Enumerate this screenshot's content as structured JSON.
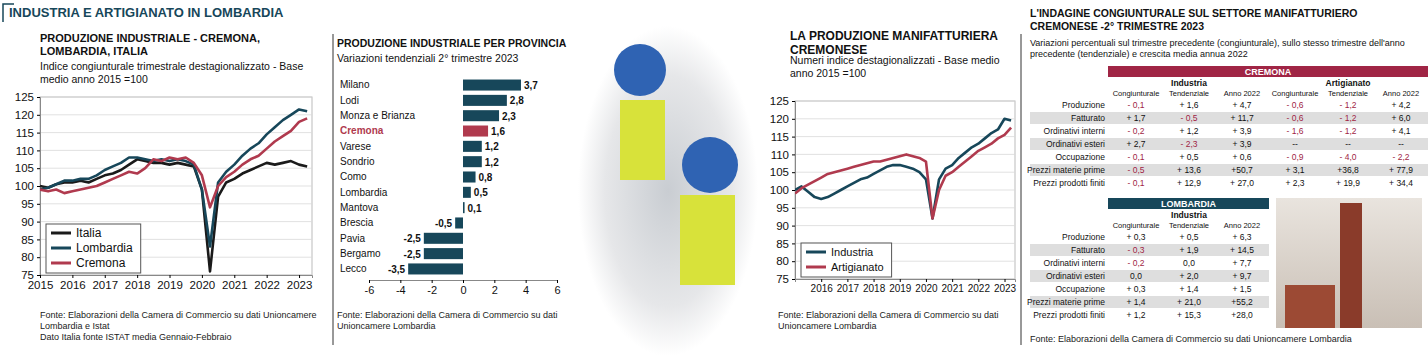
{
  "header": {
    "title": "INDUSTRIA E ARTIGIANATO IN LOMBARDIA"
  },
  "chart_data": [
    {
      "type": "line",
      "title": "PRODUZIONE INDUSTRIALE - CREMONA, LOMBARDIA, ITALIA",
      "subtitle": "Indice congiunturale trimestrale destagionalizzato - Base medio anno 2015 =100",
      "x": [
        2015,
        2015.25,
        2015.5,
        2015.75,
        2016,
        2016.25,
        2016.5,
        2016.75,
        2017,
        2017.25,
        2017.5,
        2017.75,
        2018,
        2018.25,
        2018.5,
        2018.75,
        2019,
        2019.25,
        2019.5,
        2019.75,
        2020,
        2020.25,
        2020.5,
        2020.75,
        2021,
        2021.25,
        2021.5,
        2021.75,
        2022,
        2022.25,
        2022.5,
        2022.75,
        2023,
        2023.25
      ],
      "xlim": [
        2015,
        2023.4
      ],
      "xticks": [
        2015,
        2016,
        2017,
        2018,
        2019,
        2020,
        2021,
        2022,
        2023
      ],
      "ylim": [
        75,
        125
      ],
      "yticks": [
        75,
        80,
        85,
        90,
        95,
        100,
        105,
        110,
        115,
        120,
        125
      ],
      "grid": true,
      "legend": "lower left",
      "series": [
        {
          "name": "Italia",
          "color": "#1a1a1a",
          "values": [
            100,
            99.5,
            100.5,
            101,
            101,
            101.5,
            101,
            102,
            103,
            103.5,
            104.5,
            106,
            107.5,
            107,
            106.5,
            106.5,
            106,
            106.5,
            106,
            105.5,
            99,
            76,
            97,
            101,
            102,
            103.5,
            104.5,
            105.5,
            106.5,
            106,
            106.5,
            107,
            106,
            105.5
          ]
        },
        {
          "name": "Lombardia",
          "color": "#17475a",
          "values": [
            99,
            99.5,
            100.5,
            101.5,
            101.5,
            102,
            102,
            103,
            104.5,
            105.5,
            106.5,
            108,
            108,
            107.5,
            107,
            107.5,
            107,
            107.5,
            107,
            106,
            99,
            83,
            101,
            104,
            106,
            108.5,
            110.5,
            112,
            114.5,
            116.5,
            118.5,
            120,
            121.5,
            121
          ]
        },
        {
          "name": "Cremona",
          "color": "#b03a4e",
          "values": [
            99,
            98.5,
            99,
            98,
            98.5,
            99,
            99.5,
            100,
            101,
            102,
            103,
            104,
            103.5,
            105,
            107.5,
            107,
            108,
            107.5,
            108,
            106.5,
            103,
            94,
            100,
            102.5,
            104,
            106,
            107.5,
            108.5,
            110.5,
            112.5,
            114,
            115.5,
            118,
            119
          ]
        }
      ],
      "annotations": [
        "Fonte: Elaborazioni della Camera di Commercio  su dati Unioncamere Lombardia e Istat",
        "Dato Italia fonte ISTAT media Gennaio-Febbraio"
      ]
    },
    {
      "type": "bar",
      "orientation": "horizontal",
      "title": "PRODUZIONE INDUSTRIALE PER PROVINCIA",
      "subtitle": "Variazioni tendenziali 2° trimestre 2023",
      "categories": [
        "Milano",
        "Lodi",
        "Monza e Brianza",
        "Cremona",
        "Varese",
        "Sondrio",
        "Como",
        "Lombardia",
        "Mantova",
        "Brescia",
        "Pavia",
        "Bergamo",
        "Lecco"
      ],
      "values": [
        3.7,
        2.8,
        2.3,
        1.6,
        1.2,
        1.2,
        0.8,
        0.5,
        0.1,
        -0.5,
        -2.5,
        -2.5,
        -3.5
      ],
      "value_labels": [
        "3,7",
        "2,8",
        "2,3",
        "1,6",
        "1,2",
        "1,2",
        "0,8",
        "0,5",
        "0,1",
        "-0,5",
        "-2,5",
        "-2,5",
        "-3,5"
      ],
      "colors": [
        "#17475a",
        "#17475a",
        "#17475a",
        "#b03a4e",
        "#17475a",
        "#17475a",
        "#17475a",
        "#17475a",
        "#17475a",
        "#17475a",
        "#17475a",
        "#17475a",
        "#17475a"
      ],
      "data_labels": true,
      "grid": false,
      "xlim": [
        -6,
        6
      ],
      "xticks": [
        -6,
        -4,
        -2,
        0,
        2,
        4,
        6
      ],
      "annotations": [
        "Fonte: Elaborazioni della Camera di Commercio  su dati Unioncamere Lombardia"
      ]
    },
    {
      "type": "line",
      "title": "LA PRODUZIONE MANIFATTURIERA CREMONESE",
      "subtitle": "Numeri indice destagionalizzati - Base medio anno 2015 =100",
      "x": [
        2015,
        2015.25,
        2015.5,
        2015.75,
        2016,
        2016.25,
        2016.5,
        2016.75,
        2017,
        2017.25,
        2017.5,
        2017.75,
        2018,
        2018.25,
        2018.5,
        2018.75,
        2019,
        2019.25,
        2019.5,
        2019.75,
        2020,
        2020.25,
        2020.5,
        2020.75,
        2021,
        2021.25,
        2021.5,
        2021.75,
        2022,
        2022.25,
        2022.5,
        2022.75,
        2023,
        2023.25
      ],
      "xlim": [
        2015,
        2023.4
      ],
      "xticks": [
        2016,
        2017,
        2018,
        2019,
        2020,
        2021,
        2022,
        2023
      ],
      "ylim": [
        75,
        125
      ],
      "yticks": [
        75,
        80,
        85,
        90,
        95,
        100,
        105,
        110,
        115,
        120,
        125
      ],
      "grid": true,
      "legend": "lower left",
      "series": [
        {
          "name": "Industria",
          "color": "#17475a",
          "values": [
            100,
            101,
            99.5,
            98,
            97.5,
            98,
            99,
            100,
            101,
            102,
            103,
            103.5,
            104.5,
            105.5,
            106.5,
            107,
            107,
            106.5,
            106,
            105,
            103,
            92,
            103,
            106,
            107,
            109,
            110.5,
            112,
            113,
            114.5,
            116,
            117,
            120,
            119.5
          ]
        },
        {
          "name": "Artigianato",
          "color": "#b03a4e",
          "values": [
            99,
            100.5,
            101.5,
            102.5,
            103.5,
            104.5,
            105,
            105.5,
            106,
            106.5,
            107,
            107.5,
            108,
            108,
            108.5,
            109,
            109.5,
            110,
            109.5,
            109,
            108,
            92,
            100,
            104,
            105,
            106.5,
            108,
            109.5,
            111,
            112,
            113,
            114.5,
            115.5,
            117.5
          ]
        }
      ],
      "annotations": [
        "Fonte: Elaborazioni della Camera di Commercio  su dati Unioncamere Lombardia"
      ]
    }
  ],
  "tables": {
    "title": "L'INDAGINE CONGIUNTURALE SUL SETTORE MANIFATTURIERO CREMONESE -2° TRIMESTRE 2023",
    "subtitle": "Variazioni percentuali sul trimestre precedente (congiunturale), sullo stesso trimestre dell'anno precedente (tendenziale) e crescita media annua 2022",
    "source": "Fonte: Elaborazioni della Camera di Commercio  su dati Unioncamere Lombardia",
    "blocks": [
      {
        "header": "CREMONA",
        "color": "#a02545",
        "groups": [
          "Industria",
          "Artigianato"
        ],
        "columns": [
          "Congiunturale",
          "Tendenziale",
          "Anno 2022",
          "Congiunturale",
          "Tendenziale",
          "Anno 2022"
        ],
        "rows": [
          [
            "Produzione",
            "- 0,1",
            "+ 1,6",
            "+ 4,7",
            "- 0,6",
            "- 1,2",
            "+ 4,2"
          ],
          [
            "Fatturato",
            "+ 1,7",
            "- 0,5",
            "+ 11,7",
            "- 0,6",
            "- 1,2",
            "+ 6,0"
          ],
          [
            "Ordinativi interni",
            "- 0,2",
            "+ 1,2",
            "+ 3,9",
            "- 1,6",
            "- 1,2",
            "+ 4,1"
          ],
          [
            "Ordinativi esteri",
            "+ 2,7",
            "- 2,3",
            "+ 3,9",
            "--",
            "--",
            "--"
          ],
          [
            "Occupazione",
            "- 0,1",
            "+ 0,5",
            "+ 0,6",
            "- 0,9",
            "- 4,0",
            "- 2,2"
          ],
          [
            "Prezzi materie prime",
            "- 0,5",
            "+ 13,6",
            "+50,7",
            "+ 3,1",
            "+36,8",
            "+ 77,9"
          ],
          [
            "Prezzi prodotti finiti",
            "- 0,1",
            "+ 12,9",
            "+ 27,0",
            "+ 2,3",
            "+ 19,9",
            "+ 34,4"
          ]
        ]
      },
      {
        "header": "LOMBARDIA",
        "color": "#17475a",
        "groups": [
          "Industria"
        ],
        "columns": [
          "Congiunturale",
          "Tendenziale",
          "Anno 2022"
        ],
        "rows": [
          [
            "Produzione",
            "+ 0,3",
            "+ 0,5",
            "+ 6,3"
          ],
          [
            "Fatturato",
            "- 0,3",
            "+ 1,9",
            "+ 14,5"
          ],
          [
            "Ordinativi interni",
            "- 0,2",
            "0,0",
            "+ 7,7"
          ],
          [
            "Ordinativi esteri",
            "0,0",
            "+ 2,0",
            "+ 9,7"
          ],
          [
            "Occupazione",
            "+ 0,3",
            "+ 1,4",
            "+ 1,5"
          ],
          [
            "Prezzi materie prime",
            "+ 1,4",
            "+ 21,0",
            "+55,2"
          ],
          [
            "Prezzi prodotti finiti",
            "+ 1,2",
            "+ 15,3",
            "+28,0"
          ]
        ]
      }
    ]
  }
}
